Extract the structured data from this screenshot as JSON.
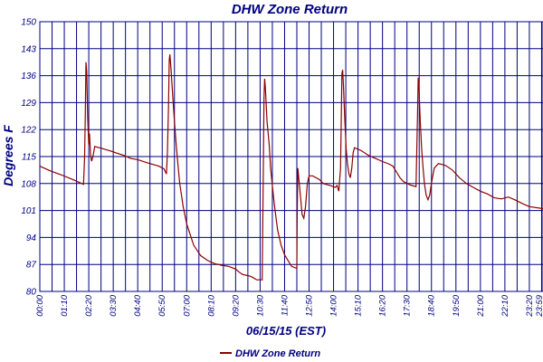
{
  "chart_data": {
    "type": "line",
    "title": "DHW Zone Return",
    "ylabel": "Degrees F",
    "xlabel": "06/15/15 (EST)",
    "ylim": [
      80,
      150
    ],
    "xlim": [
      0,
      1439
    ],
    "grid": true,
    "legend_position": "bottom-center",
    "y_ticks": [
      "80",
      "87",
      "94",
      "101",
      "108",
      "115",
      "122",
      "129",
      "136",
      "143",
      "150"
    ],
    "x_ticks": [
      "00:00",
      "01:10",
      "02:20",
      "03:30",
      "04:40",
      "05:50",
      "07:00",
      "08:10",
      "09:20",
      "10:30",
      "11:40",
      "12:50",
      "14:00",
      "15:10",
      "16:20",
      "17:30",
      "18:40",
      "19:50",
      "21:00",
      "22:10",
      "23:20",
      "23:59"
    ],
    "colors": {
      "line": "#8b0000",
      "grid": "#000080",
      "text": "#000080",
      "axis": "#000080"
    },
    "series": [
      {
        "name": "DHW Zone Return",
        "points": [
          [
            0,
            112.5
          ],
          [
            30,
            111.3
          ],
          [
            60,
            110.3
          ],
          [
            90,
            109.2
          ],
          [
            115,
            108.2
          ],
          [
            125,
            107.8
          ],
          [
            128,
            115
          ],
          [
            130,
            125
          ],
          [
            132,
            139.5
          ],
          [
            134,
            137
          ],
          [
            137,
            125
          ],
          [
            140,
            118
          ],
          [
            142,
            121
          ],
          [
            145,
            115.5
          ],
          [
            148,
            113.8
          ],
          [
            152,
            115
          ],
          [
            157,
            117.6
          ],
          [
            170,
            117.3
          ],
          [
            200,
            116.5
          ],
          [
            240,
            115.3
          ],
          [
            260,
            114.5
          ],
          [
            280,
            114.2
          ],
          [
            310,
            113.3
          ],
          [
            340,
            112.5
          ],
          [
            355,
            111.8
          ],
          [
            362,
            110.5
          ],
          [
            365,
            116
          ],
          [
            368,
            128
          ],
          [
            370,
            140
          ],
          [
            372,
            141.5
          ],
          [
            375,
            138
          ],
          [
            380,
            131
          ],
          [
            385,
            124
          ],
          [
            390,
            118
          ],
          [
            395,
            113
          ],
          [
            400,
            108
          ],
          [
            410,
            102
          ],
          [
            420,
            97.5
          ],
          [
            440,
            92
          ],
          [
            460,
            89.3
          ],
          [
            480,
            88
          ],
          [
            500,
            87.2
          ],
          [
            520,
            86.8
          ],
          [
            540,
            86.5
          ],
          [
            560,
            85.8
          ],
          [
            570,
            85
          ],
          [
            580,
            84.4
          ],
          [
            600,
            84
          ],
          [
            610,
            83.6
          ],
          [
            620,
            83
          ],
          [
            636,
            83
          ],
          [
            639,
            110
          ],
          [
            641,
            130
          ],
          [
            643,
            135.2
          ],
          [
            645,
            133
          ],
          [
            650,
            124
          ],
          [
            656,
            118
          ],
          [
            660,
            112
          ],
          [
            670,
            103
          ],
          [
            680,
            96
          ],
          [
            690,
            92
          ],
          [
            700,
            89.5
          ],
          [
            710,
            88
          ],
          [
            720,
            86.5
          ],
          [
            735,
            86
          ],
          [
            736,
            100
          ],
          [
            738,
            112
          ],
          [
            740,
            110
          ],
          [
            745,
            105
          ],
          [
            750,
            100
          ],
          [
            755,
            99
          ],
          [
            760,
            102
          ],
          [
            765,
            108
          ],
          [
            770,
            110
          ],
          [
            780,
            110
          ],
          [
            800,
            109
          ],
          [
            810,
            108
          ],
          [
            830,
            107.5
          ],
          [
            845,
            107
          ],
          [
            850,
            107.5
          ],
          [
            855,
            106
          ],
          [
            860,
            112
          ],
          [
            862,
            125
          ],
          [
            864,
            136.5
          ],
          [
            866,
            137.5
          ],
          [
            868,
            134
          ],
          [
            872,
            125
          ],
          [
            876,
            117
          ],
          [
            880,
            113
          ],
          [
            884,
            110.5
          ],
          [
            888,
            109.5
          ],
          [
            892,
            112
          ],
          [
            896,
            116
          ],
          [
            900,
            117.3
          ],
          [
            920,
            116.5
          ],
          [
            940,
            115.3
          ],
          [
            960,
            114.5
          ],
          [
            980,
            113.7
          ],
          [
            1000,
            113
          ],
          [
            1010,
            112.5
          ],
          [
            1020,
            111
          ],
          [
            1030,
            109.5
          ],
          [
            1040,
            108.5
          ],
          [
            1060,
            107.6
          ],
          [
            1076,
            107.2
          ],
          [
            1080,
            125
          ],
          [
            1082,
            135.5
          ],
          [
            1084,
            134
          ],
          [
            1088,
            124
          ],
          [
            1092,
            117
          ],
          [
            1096,
            112
          ],
          [
            1100,
            108
          ],
          [
            1105,
            105
          ],
          [
            1110,
            103.8
          ],
          [
            1115,
            105
          ],
          [
            1120,
            108
          ],
          [
            1128,
            112
          ],
          [
            1140,
            113.2
          ],
          [
            1160,
            112.7
          ],
          [
            1180,
            111.5
          ],
          [
            1200,
            109.5
          ],
          [
            1220,
            108
          ],
          [
            1240,
            107
          ],
          [
            1260,
            106
          ],
          [
            1280,
            105.3
          ],
          [
            1300,
            104.3
          ],
          [
            1320,
            104
          ],
          [
            1340,
            104.5
          ],
          [
            1360,
            103.7
          ],
          [
            1380,
            102.8
          ],
          [
            1400,
            102
          ],
          [
            1439,
            101.5
          ]
        ]
      }
    ]
  }
}
